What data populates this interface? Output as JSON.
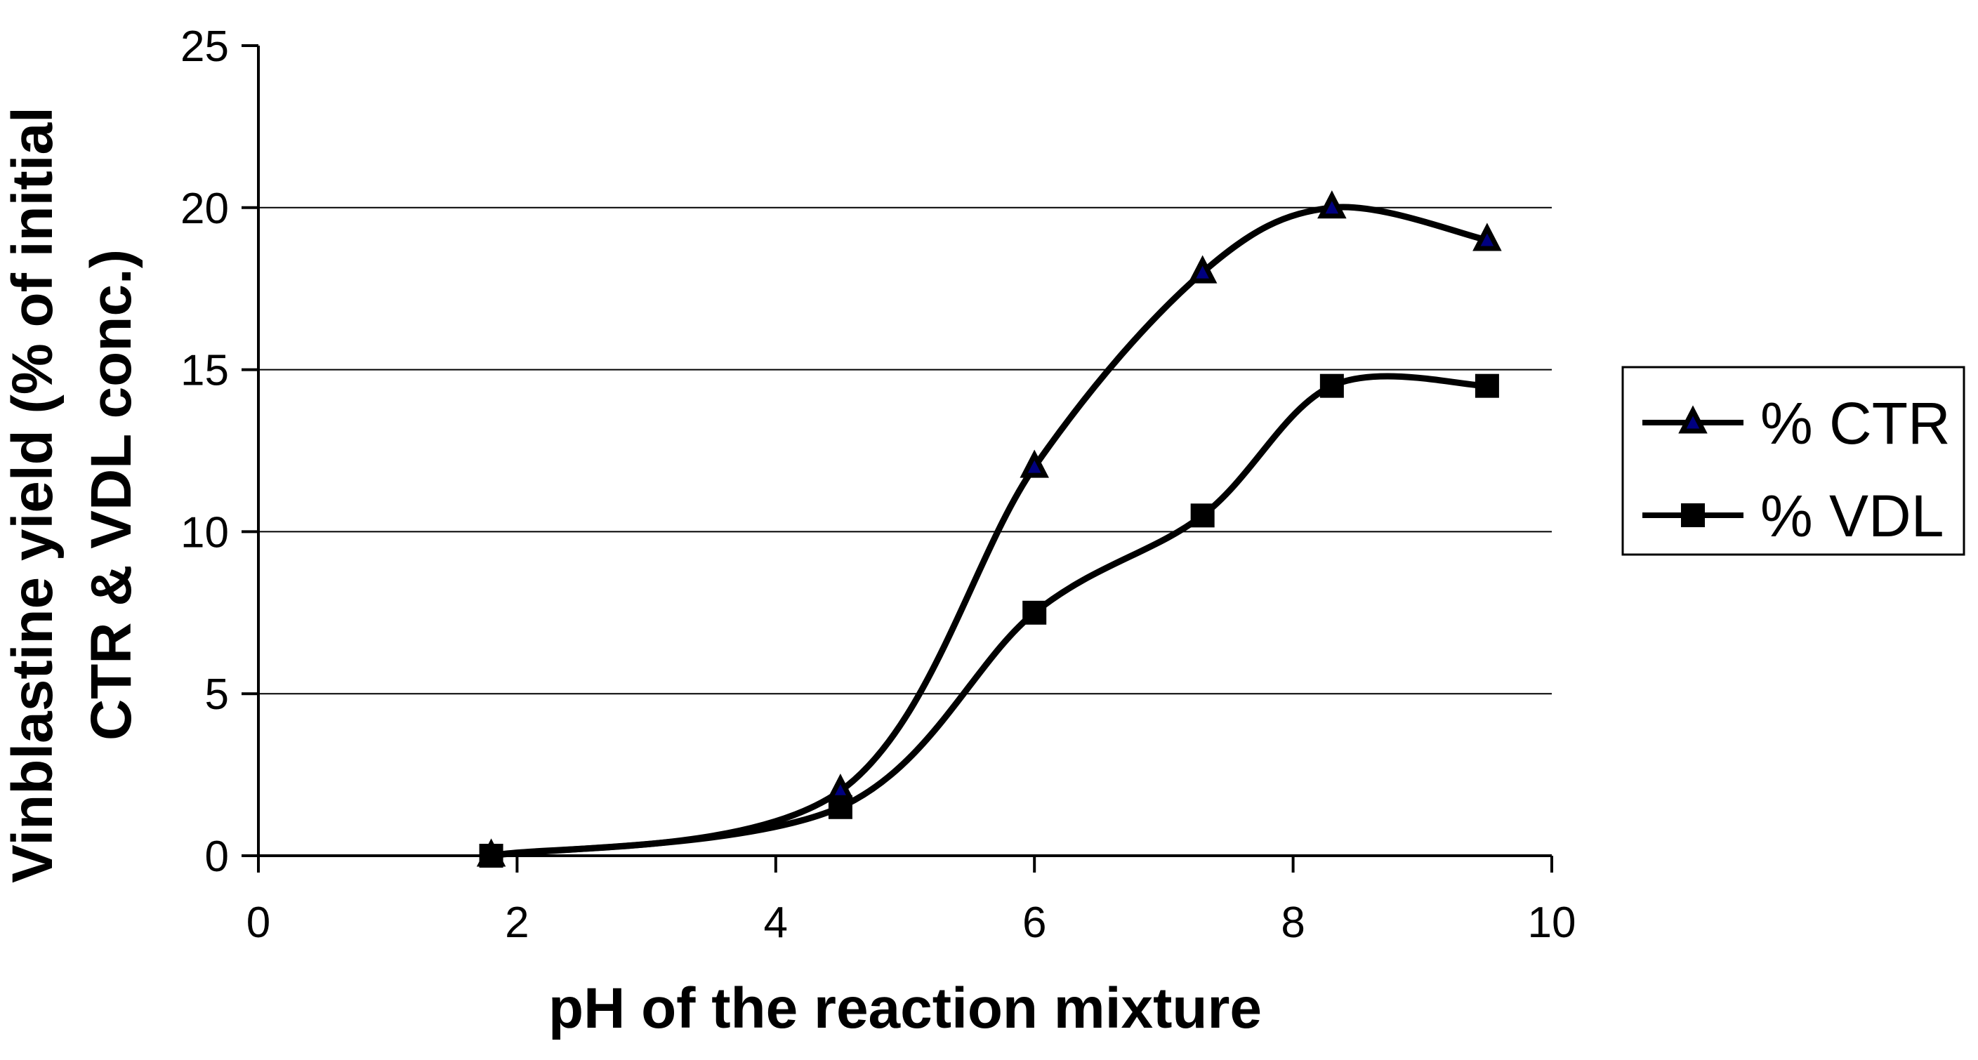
{
  "chart_data": {
    "type": "line",
    "title": "",
    "xlabel": "pH of the reaction mixture",
    "ylabel_lines": [
      "Vinblastine yield (% of initial",
      "CTR & VDL conc.)"
    ],
    "xlim": [
      0,
      10
    ],
    "ylim": [
      0,
      25
    ],
    "x_ticks": [
      "0",
      "2",
      "4",
      "6",
      "8",
      "10"
    ],
    "x_tick_values": [
      0,
      2,
      4,
      6,
      8,
      10
    ],
    "y_ticks": [
      "0",
      "5",
      "10",
      "15",
      "20",
      "25"
    ],
    "y_tick_values": [
      0,
      5,
      10,
      15,
      20,
      25
    ],
    "gridline_values": [
      5,
      10,
      15,
      20
    ],
    "grid": "horizontal",
    "legend_position": "middle-right",
    "line_smoothing": true,
    "series": [
      {
        "name": "% CTR",
        "marker": "triangle",
        "marker_fill": "#000080",
        "marker_stroke": "#000000",
        "line_color": "#000000",
        "x": [
          1.8,
          4.5,
          6.0,
          7.3,
          8.3,
          9.5
        ],
        "y": [
          0,
          2,
          12,
          18,
          20,
          19
        ]
      },
      {
        "name": "% VDL",
        "marker": "square",
        "marker_fill": "#000000",
        "marker_stroke": "#000000",
        "line_color": "#000000",
        "x": [
          1.8,
          4.5,
          6.0,
          7.3,
          8.3,
          9.5
        ],
        "y": [
          0,
          1.5,
          7.5,
          10.5,
          14.5,
          14.5
        ]
      }
    ],
    "colors": {
      "background": "#ffffff",
      "axis": "#000000",
      "gridline": "#000000",
      "text": "#000000",
      "ctr_marker": "#000080",
      "vdl_marker": "#000000"
    }
  }
}
